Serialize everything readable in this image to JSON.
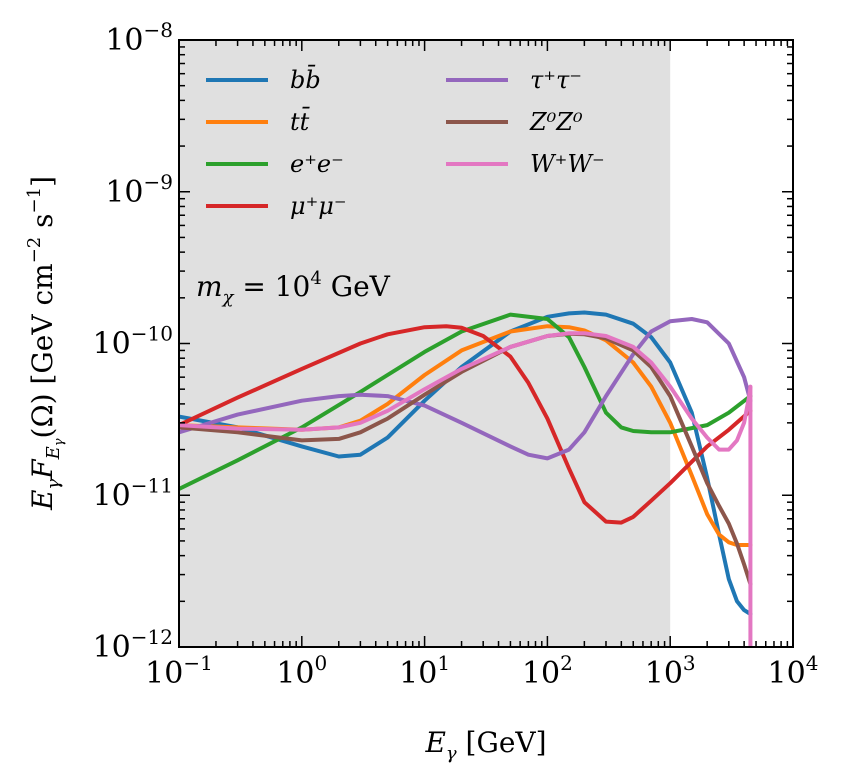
{
  "chart_data": {
    "type": "line",
    "xscale": "log",
    "yscale": "log",
    "xlim": [
      0.1,
      10000
    ],
    "ylim": [
      1e-12,
      1e-08
    ],
    "x_ticks": [
      {
        "base": "10",
        "exp": "−1",
        "value": 0.1
      },
      {
        "base": "10",
        "exp": "0",
        "value": 1
      },
      {
        "base": "10",
        "exp": "1",
        "value": 10
      },
      {
        "base": "10",
        "exp": "2",
        "value": 100
      },
      {
        "base": "10",
        "exp": "3",
        "value": 1000
      },
      {
        "base": "10",
        "exp": "4",
        "value": 10000
      }
    ],
    "y_ticks": [
      {
        "base": "10",
        "exp": "−12",
        "value": 1e-12
      },
      {
        "base": "10",
        "exp": "−11",
        "value": 1e-11
      },
      {
        "base": "10",
        "exp": "−10",
        "value": 1e-10
      },
      {
        "base": "10",
        "exp": "−9",
        "value": 1e-09
      },
      {
        "base": "10",
        "exp": "−8",
        "value": 1e-08
      }
    ],
    "xlabel": "E_γ [GeV]",
    "ylabel": "E_γ F_{E_γ}(Ω) [GeV cm^−2 s^−1]",
    "shaded_region": {
      "x_from": 0.1,
      "x_to": 1000,
      "color": "#e0e0e0"
    },
    "annotation": "m_χ = 10^4 GeV",
    "series": [
      {
        "name": "bb̄",
        "color": "#1f77b4",
        "x": [
          0.1,
          0.3,
          1,
          2,
          3,
          5,
          10,
          20,
          50,
          100,
          150,
          200,
          300,
          500,
          700,
          1000,
          1500,
          2000,
          2500,
          3000,
          3500,
          4000,
          4500
        ],
        "y": [
          3.3e-11,
          2.8e-11,
          2.1e-11,
          1.8e-11,
          1.85e-11,
          2.4e-11,
          4.2e-11,
          7e-11,
          1.2e-10,
          1.5e-10,
          1.58e-10,
          1.6e-10,
          1.55e-10,
          1.35e-10,
          1.1e-10,
          7.5e-11,
          3.5e-11,
          1.3e-11,
          5.5e-12,
          2.8e-12,
          2e-12,
          1.75e-12,
          1.65e-12
        ]
      },
      {
        "name": "tt̄",
        "color": "#ff7f0e",
        "x": [
          0.1,
          0.3,
          1,
          2,
          3,
          5,
          10,
          20,
          50,
          100,
          150,
          200,
          300,
          500,
          700,
          1000,
          1500,
          2000,
          2500,
          3000,
          3500,
          4000,
          4500
        ],
        "y": [
          2.9e-11,
          2.8e-11,
          2.7e-11,
          2.8e-11,
          3.1e-11,
          4e-11,
          6.2e-11,
          9e-11,
          1.2e-10,
          1.3e-10,
          1.28e-10,
          1.22e-10,
          1.05e-10,
          7.5e-11,
          5.2e-11,
          3e-11,
          1.35e-11,
          7.5e-12,
          5.5e-12,
          4.9e-12,
          4.7e-12,
          4.7e-12,
          4.7e-12
        ]
      },
      {
        "name": "e⁺e⁻",
        "color": "#2ca02c",
        "x": [
          0.1,
          0.3,
          1,
          3,
          10,
          20,
          50,
          100,
          150,
          200,
          300,
          400,
          500,
          700,
          1000,
          2000,
          3000,
          4500
        ],
        "y": [
          1.1e-11,
          1.7e-11,
          2.8e-11,
          4.8e-11,
          8.8e-11,
          1.2e-10,
          1.55e-10,
          1.45e-10,
          1.1e-10,
          7e-11,
          3.5e-11,
          2.8e-11,
          2.65e-11,
          2.6e-11,
          2.6e-11,
          2.9e-11,
          3.5e-11,
          4.5e-11
        ]
      },
      {
        "name": "μ⁺μ⁻",
        "color": "#d62728",
        "x": [
          0.1,
          0.3,
          1,
          3,
          5,
          10,
          15,
          20,
          30,
          50,
          70,
          100,
          150,
          200,
          300,
          400,
          500,
          700,
          1000,
          2000,
          3000,
          4500
        ],
        "y": [
          2.9e-11,
          4.4e-11,
          6.8e-11,
          1e-10,
          1.15e-10,
          1.28e-10,
          1.3e-10,
          1.27e-10,
          1.12e-10,
          8.2e-11,
          5.5e-11,
          3.2e-11,
          1.5e-11,
          9e-12,
          6.7e-12,
          6.6e-12,
          7.2e-12,
          9.2e-12,
          1.2e-11,
          2.1e-11,
          2.7e-11,
          3.6e-11
        ]
      },
      {
        "name": "τ⁺τ⁻",
        "color": "#9467bd",
        "x": [
          0.1,
          0.3,
          1,
          2,
          3,
          5,
          10,
          20,
          50,
          70,
          100,
          150,
          200,
          300,
          500,
          700,
          1000,
          1500,
          2000,
          3000,
          4000,
          4500
        ],
        "y": [
          2.6e-11,
          3.4e-11,
          4.2e-11,
          4.5e-11,
          4.6e-11,
          4.5e-11,
          3.9e-11,
          3e-11,
          2.1e-11,
          1.85e-11,
          1.75e-11,
          2e-11,
          2.6e-11,
          4.5e-11,
          8.5e-11,
          1.2e-10,
          1.4e-10,
          1.45e-10,
          1.38e-10,
          1e-10,
          6e-11,
          4.2e-11
        ]
      },
      {
        "name": "Z⁰Z⁰",
        "color": "#8c564b",
        "x": [
          0.1,
          0.3,
          1,
          2,
          3,
          5,
          10,
          20,
          50,
          100,
          150,
          200,
          300,
          500,
          700,
          1000,
          1500,
          2000,
          2500,
          3000,
          3500,
          4000,
          4500
        ],
        "y": [
          2.8e-11,
          2.6e-11,
          2.3e-11,
          2.35e-11,
          2.6e-11,
          3.2e-11,
          4.6e-11,
          6.5e-11,
          9.5e-11,
          1.12e-10,
          1.16e-10,
          1.15e-10,
          1.08e-10,
          9e-11,
          7e-11,
          4.5e-11,
          2.1e-11,
          1.2e-11,
          8.5e-12,
          6.5e-12,
          4.8e-12,
          3.5e-12,
          2.6e-12
        ]
      },
      {
        "name": "W⁺W⁻",
        "color": "#e377c2",
        "x": [
          0.1,
          0.3,
          1,
          2,
          3,
          5,
          10,
          20,
          50,
          100,
          150,
          200,
          300,
          500,
          700,
          1000,
          1500,
          2000,
          2500,
          3000,
          3500,
          4000,
          4400,
          4500
        ],
        "y": [
          2.9e-11,
          2.75e-11,
          2.7e-11,
          2.8e-11,
          3e-11,
          3.6e-11,
          5e-11,
          6.8e-11,
          9.5e-11,
          1.12e-10,
          1.17e-10,
          1.17e-10,
          1.12e-10,
          9.5e-11,
          7.5e-11,
          5.2e-11,
          3.2e-11,
          2.4e-11,
          2e-11,
          2e-11,
          2.3e-11,
          3e-11,
          4.5e-11,
          5.2e-11
        ]
      }
    ],
    "legend_columns": [
      [
        "bb̄",
        "tt̄",
        "e⁺e⁻",
        "μ⁺μ⁻"
      ],
      [
        "τ⁺τ⁻",
        "Z⁰Z⁰",
        "W⁺W⁻"
      ]
    ],
    "legend_location": "top-left"
  }
}
